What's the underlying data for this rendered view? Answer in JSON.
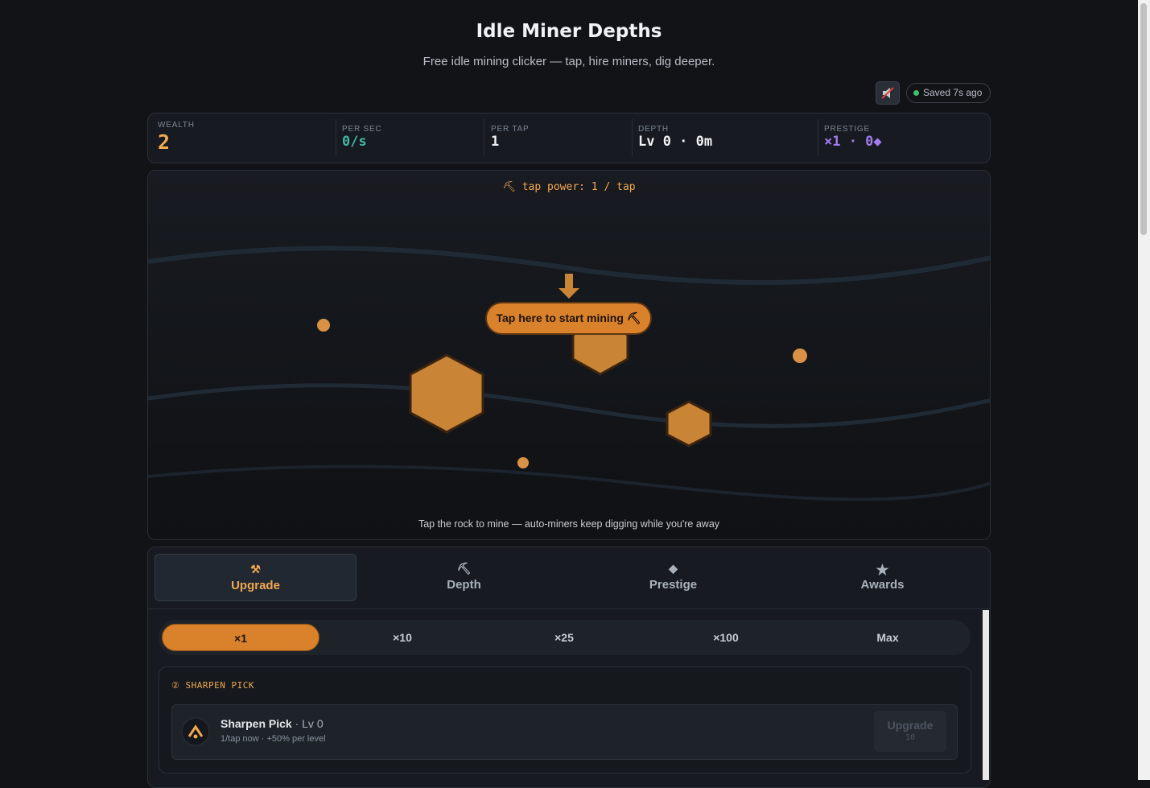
{
  "header": {
    "title": "Idle Miner Depths",
    "subtitle": "Free idle mining clicker — tap, hire miners, dig deeper.",
    "save_status": "Saved 7s ago"
  },
  "stats": [
    {
      "label": "WEALTH",
      "value": "2"
    },
    {
      "label": "PER SEC",
      "value": "0/s"
    },
    {
      "label": "PER TAP",
      "value": "1"
    },
    {
      "label": "DEPTH",
      "value": "Lv 0 · 0m"
    },
    {
      "label": "PRESTIGE",
      "value": "×1 · 0◆"
    }
  ],
  "mine": {
    "tap_power": "⛏ tap power: 1 / tap",
    "call_to_action": "Tap here to start mining ⛏",
    "hint": "Tap the rock to mine — auto-miners keep digging while you're away"
  },
  "tabs": [
    {
      "icon": "⚒",
      "label": "Upgrade"
    },
    {
      "icon": "⛏",
      "label": "Depth"
    },
    {
      "icon": "◆",
      "label": "Prestige"
    },
    {
      "icon": "★",
      "label": "Awards"
    }
  ],
  "multipliers": [
    "×1",
    "×10",
    "×25",
    "×100",
    "Max"
  ],
  "section": {
    "badge": "②",
    "title": "SHARPEN PICK"
  },
  "card": {
    "name": "Sharpen Pick",
    "level": "· Lv 0",
    "description": "1/tap now · +50% per level",
    "button": "Upgrade",
    "cost": "10"
  }
}
